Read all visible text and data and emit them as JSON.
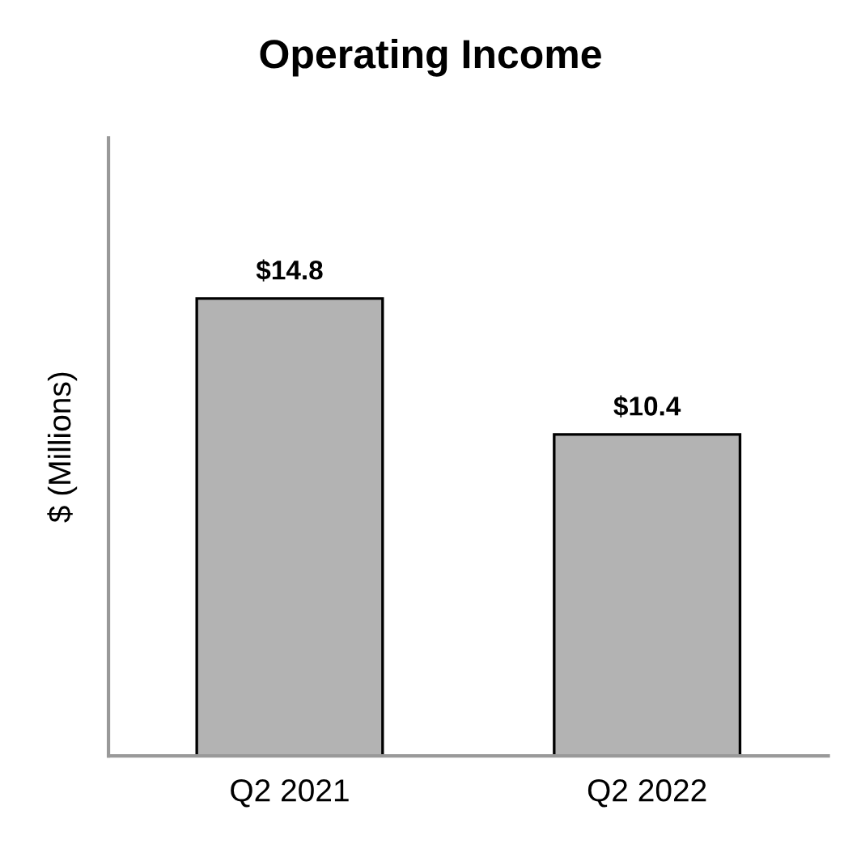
{
  "chart_data": {
    "type": "bar",
    "title": "Operating Income",
    "ylabel": "$ (Millions)",
    "categories": [
      "Q2 2021",
      "Q2 2022"
    ],
    "values": [
      14.8,
      10.4
    ],
    "value_labels": [
      "$14.8",
      "$10.4"
    ],
    "color": "#b3b3b3",
    "ylim": [
      0,
      20
    ],
    "tick_labels": "x",
    "grid": false,
    "legend": false
  }
}
